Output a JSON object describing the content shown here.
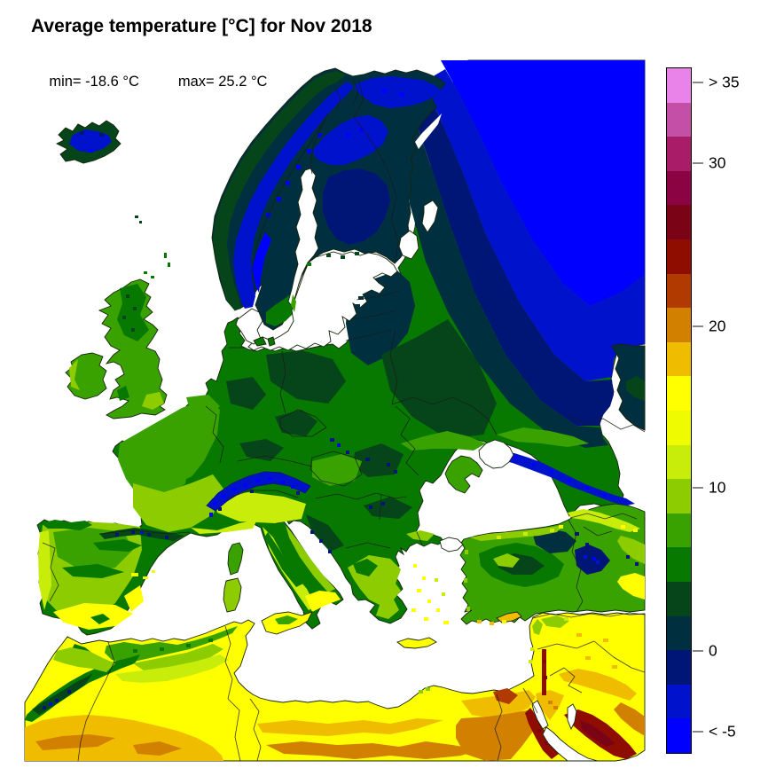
{
  "header": {
    "title": "Average temperature [°C] for Nov 2018",
    "min_label": "min= -18.6 °C",
    "max_label": "max= 25.2 °C"
  },
  "legend": {
    "unit": "°C",
    "colors_top_to_bottom": [
      "#E982E9",
      "#C350A6",
      "#A81C68",
      "#8B0343",
      "#7A0415",
      "#8F0D00",
      "#B13A00",
      "#D28000",
      "#F0BC00",
      "#FFFF00",
      "#EFFB00",
      "#C9ED0B",
      "#8DCD00",
      "#3AA200",
      "#077800",
      "#054519",
      "#00303F",
      "#001677",
      "#0112CC",
      "#0000FF"
    ],
    "ticks": [
      {
        "label": "> 35",
        "pos": 0.022
      },
      {
        "label": "30",
        "pos": 0.1405
      },
      {
        "label": "20",
        "pos": 0.3776
      },
      {
        "label": "10",
        "pos": 0.6146
      },
      {
        "label": "0",
        "pos": 0.8517
      },
      {
        "label": "< -5",
        "pos": 0.9702
      }
    ]
  },
  "palette": {
    "blue1": "#0000FF",
    "blue2": "#0112CC",
    "navy": "#001677",
    "teal": "#00303F",
    "green1": "#054519",
    "green2": "#077800",
    "green3": "#3AA200",
    "green4": "#8DCD00",
    "green5": "#C9ED0B",
    "yellow1": "#EFFB00",
    "yellow2": "#FFFF00",
    "amber": "#F0BC00",
    "orange": "#D28000",
    "rust": "#B13A00",
    "red1": "#8F0D00",
    "red2": "#7A0415",
    "wine": "#8B0343",
    "magenta": "#A81C68",
    "orchid": "#C350A6",
    "violet": "#E982E9",
    "sea": "#FFFFFF",
    "border": "#1A1A1A",
    "coast": "#15240B"
  },
  "map": {
    "projection": "lat-lon raster, Europe / North Africa",
    "sea_color": "#FFFFFF",
    "regions": [
      {
        "id": "iceland",
        "dominant_band": "blue2"
      },
      {
        "id": "british-isles",
        "dominant_band": "green3"
      },
      {
        "id": "scandinavia",
        "dominant_band": "blue2"
      },
      {
        "id": "finland-kola",
        "dominant_band": "teal"
      },
      {
        "id": "nw-russia",
        "dominant_band": "blue1"
      },
      {
        "id": "baltics-belarus",
        "dominant_band": "teal"
      },
      {
        "id": "central-europe",
        "dominant_band": "green2"
      },
      {
        "id": "france",
        "dominant_band": "green3"
      },
      {
        "id": "alps",
        "dominant_band": "blue2"
      },
      {
        "id": "iberia",
        "dominant_band": "green4"
      },
      {
        "id": "italy",
        "dominant_band": "green5"
      },
      {
        "id": "balkans-greece",
        "dominant_band": "green2"
      },
      {
        "id": "turkey-caucasus",
        "dominant_band": "green3"
      },
      {
        "id": "north-africa",
        "dominant_band": "yellow2"
      },
      {
        "id": "sahara-south",
        "dominant_band": "amber"
      },
      {
        "id": "egypt-arabia",
        "dominant_band": "orange"
      },
      {
        "id": "red-sea-hills",
        "dominant_band": "red1"
      }
    ]
  }
}
